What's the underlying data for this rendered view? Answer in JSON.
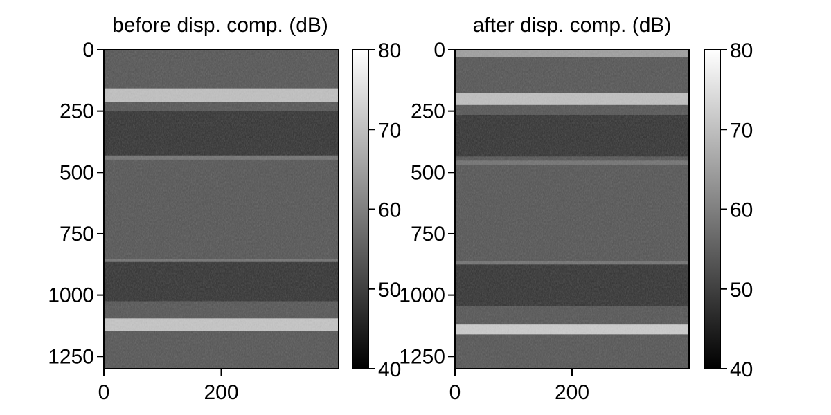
{
  "chart_data": [
    {
      "type": "heatmap",
      "title": "before disp. comp. (dB)",
      "xlabel": "",
      "ylabel": "",
      "xlim": [
        0,
        400
      ],
      "ylim": [
        1300,
        0
      ],
      "x_ticks": [
        0,
        200
      ],
      "y_ticks": [
        0,
        250,
        500,
        750,
        1000,
        1250
      ],
      "colormap": "gray",
      "colorbar": {
        "min": 40,
        "max": 80,
        "ticks": [
          40,
          50,
          60,
          70,
          80
        ]
      },
      "bands": [
        {
          "y_center": 185,
          "half_width": 28,
          "db": 72
        },
        {
          "y_center": 340,
          "half_width": 90,
          "db": 47
        },
        {
          "y_center": 440,
          "half_width": 8,
          "db": 58
        },
        {
          "y_center": 860,
          "half_width": 8,
          "db": 58
        },
        {
          "y_center": 945,
          "half_width": 80,
          "db": 47
        },
        {
          "y_center": 1120,
          "half_width": 25,
          "db": 73
        }
      ],
      "background_db": 53
    },
    {
      "type": "heatmap",
      "title": "after disp. comp. (dB)",
      "xlabel": "",
      "ylabel": "",
      "xlim": [
        0,
        400
      ],
      "ylim": [
        1300,
        0
      ],
      "x_ticks": [
        0,
        200
      ],
      "y_ticks": [
        0,
        250,
        500,
        750,
        1000,
        1250
      ],
      "colormap": "gray",
      "colorbar": {
        "min": 40,
        "max": 80,
        "ticks": [
          40,
          50,
          60,
          70,
          80
        ]
      },
      "bands": [
        {
          "y_center": 15,
          "half_width": 14,
          "db": 66
        },
        {
          "y_center": 200,
          "half_width": 25,
          "db": 72
        },
        {
          "y_center": 350,
          "half_width": 85,
          "db": 47
        },
        {
          "y_center": 460,
          "half_width": 8,
          "db": 58
        },
        {
          "y_center": 870,
          "half_width": 8,
          "db": 58
        },
        {
          "y_center": 960,
          "half_width": 85,
          "db": 47
        },
        {
          "y_center": 1140,
          "half_width": 20,
          "db": 74
        }
      ],
      "background_db": 53
    }
  ]
}
